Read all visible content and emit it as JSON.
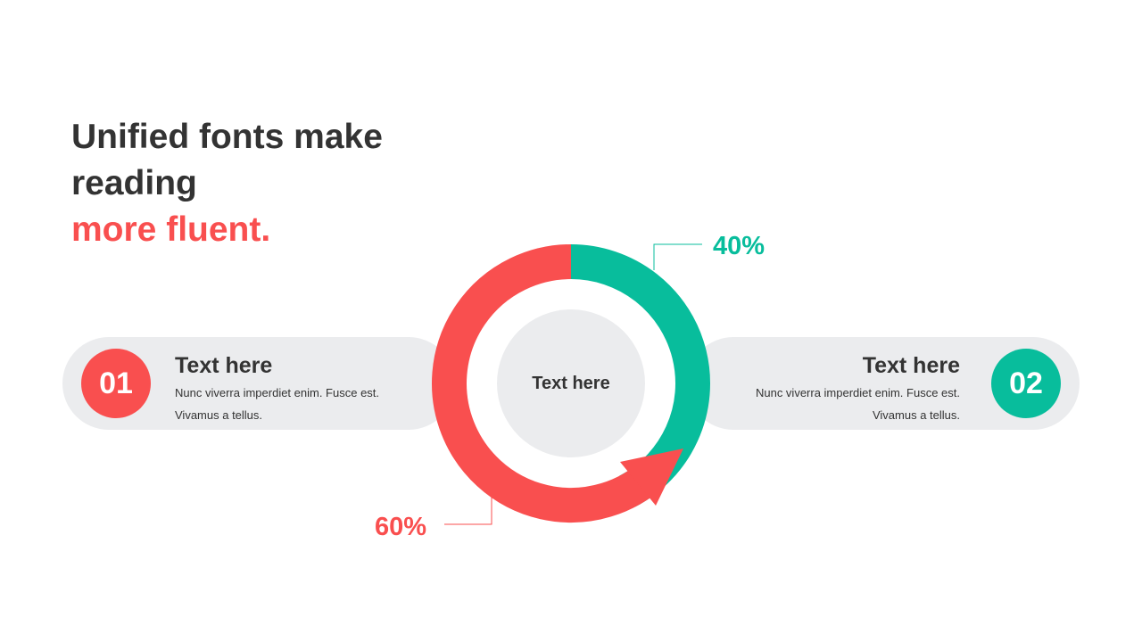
{
  "title": {
    "line1": "Unified fonts make",
    "line2": "reading",
    "accent": "more fluent."
  },
  "colors": {
    "red": "#F94F4F",
    "green": "#08BD9C",
    "pill": "#EBECEE",
    "text": "#333333"
  },
  "cards": [
    {
      "number": "01",
      "heading": "Text here",
      "line1": "Nunc  viverra imperdiet  enim.  Fusce est.",
      "line2": "Vivamus  a tellus."
    },
    {
      "number": "02",
      "heading": "Text here",
      "line1": "Nunc  viverra imperdiet  enim.  Fusce est.",
      "line2": "Vivamus  a tellus."
    }
  ],
  "center_label": "Text here",
  "chart_data": {
    "type": "pie",
    "style": "donut",
    "slices": [
      {
        "label": "40%",
        "value": 40,
        "color": "#08BD9C"
      },
      {
        "label": "60%",
        "value": 60,
        "color": "#F94F4F"
      }
    ]
  }
}
